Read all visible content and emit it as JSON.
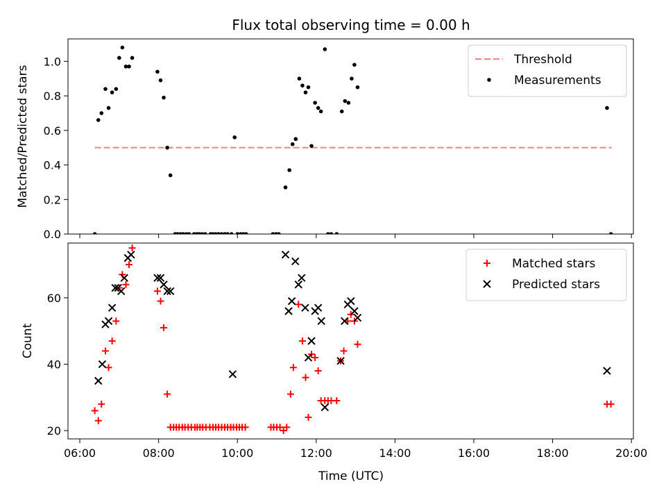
{
  "figure": {
    "title": "Flux total observing time = 0.00 h",
    "xlabel": "Time (UTC)",
    "x_ticks": [
      "06:00",
      "08:00",
      "10:00",
      "12:00",
      "14:00",
      "16:00",
      "18:00",
      "20:00"
    ]
  },
  "chart_data": [
    {
      "type": "scatter",
      "ylabel": "Matched/Predicted stars",
      "xlim": [
        5.7,
        20.05
      ],
      "ylim": [
        0.0,
        1.13
      ],
      "y_ticks": [
        "0.0",
        "0.2",
        "0.4",
        "0.6",
        "0.8",
        "1.0"
      ],
      "legend_position": "top-right",
      "threshold": {
        "name": "Threshold",
        "value": 0.5,
        "x_range": [
          6.38,
          19.5
        ],
        "color": "#ff7f7f",
        "style": "dashed"
      },
      "series": [
        {
          "name": "Measurements",
          "color": "#000000",
          "marker": "dot",
          "x": [
            6.38,
            6.47,
            6.55,
            6.65,
            6.73,
            6.82,
            6.92,
            7.0,
            7.08,
            7.17,
            7.25,
            7.33,
            7.97,
            8.05,
            8.13,
            8.22,
            8.3,
            8.42,
            8.48,
            8.55,
            8.62,
            8.7,
            8.77,
            8.9,
            8.97,
            9.03,
            9.1,
            9.18,
            9.32,
            9.38,
            9.45,
            9.52,
            9.6,
            9.68,
            9.75,
            9.85,
            9.93,
            10.0,
            10.08,
            10.15,
            10.22,
            10.9,
            10.98,
            11.05,
            11.22,
            11.32,
            11.4,
            11.48,
            11.57,
            11.65,
            11.73,
            11.8,
            11.88,
            11.97,
            12.05,
            12.12,
            12.22,
            12.3,
            12.38,
            12.52,
            12.65,
            12.73,
            12.82,
            12.9,
            12.97,
            13.05,
            19.38,
            19.48
          ],
          "y": [
            0.0,
            0.66,
            0.7,
            0.84,
            0.73,
            0.82,
            0.84,
            1.02,
            1.08,
            0.97,
            0.97,
            1.02,
            0.94,
            0.89,
            0.79,
            0.5,
            0.34,
            0.0,
            0.0,
            0.0,
            0.0,
            0.0,
            0.0,
            0.0,
            0.0,
            0.0,
            0.0,
            0.0,
            0.0,
            0.0,
            0.0,
            0.0,
            0.0,
            0.0,
            0.0,
            0.0,
            0.56,
            0.0,
            0.0,
            0.0,
            0.0,
            0.0,
            0.0,
            0.0,
            0.27,
            0.37,
            0.52,
            0.55,
            0.9,
            0.86,
            0.82,
            0.85,
            0.51,
            0.76,
            0.73,
            0.71,
            1.07,
            0.0,
            0.0,
            0.0,
            0.71,
            0.77,
            0.76,
            0.9,
            0.98,
            0.85,
            0.73,
            0.0
          ]
        }
      ]
    },
    {
      "type": "scatter",
      "ylabel": "Count",
      "xlim": [
        5.7,
        20.05
      ],
      "ylim": [
        17.5,
        76.5
      ],
      "y_ticks": [
        "20",
        "40",
        "60"
      ],
      "legend_position": "top-right",
      "series": [
        {
          "name": "Matched stars",
          "color": "#ff0000",
          "marker": "plus",
          "x": [
            6.38,
            6.47,
            6.55,
            6.65,
            6.73,
            6.82,
            6.92,
            7.0,
            7.08,
            7.17,
            7.25,
            7.33,
            7.97,
            8.05,
            8.13,
            8.22,
            8.3,
            8.38,
            8.45,
            8.52,
            8.6,
            8.67,
            8.75,
            8.83,
            8.92,
            8.98,
            9.05,
            9.12,
            9.2,
            9.3,
            9.38,
            9.45,
            9.52,
            9.6,
            9.68,
            9.75,
            9.83,
            9.9,
            9.98,
            10.05,
            10.12,
            10.2,
            10.85,
            10.92,
            11.0,
            11.08,
            11.17,
            11.25,
            11.35,
            11.42,
            11.55,
            11.65,
            11.73,
            11.8,
            11.88,
            11.97,
            12.05,
            12.12,
            12.22,
            12.3,
            12.38,
            12.52,
            12.62,
            12.7,
            12.8,
            12.88,
            12.97,
            13.05,
            19.38,
            19.48
          ],
          "y": [
            26,
            23,
            28,
            44,
            39,
            47,
            53,
            63,
            67,
            64,
            70,
            75,
            62,
            59,
            51,
            31,
            21,
            21,
            21,
            21,
            21,
            21,
            21,
            21,
            21,
            21,
            21,
            21,
            21,
            21,
            21,
            21,
            21,
            21,
            21,
            21,
            21,
            21,
            21,
            21,
            21,
            21,
            21,
            21,
            21,
            21,
            20,
            21,
            31,
            39,
            58,
            47,
            36,
            24,
            43,
            42,
            38,
            29,
            29,
            29,
            29,
            29,
            41,
            44,
            53,
            55,
            53,
            46,
            28,
            28
          ]
        },
        {
          "name": "Predicted stars",
          "color": "#000000",
          "marker": "x",
          "x": [
            6.47,
            6.57,
            6.65,
            6.73,
            6.82,
            6.9,
            6.97,
            7.05,
            7.13,
            7.22,
            7.3,
            7.97,
            8.05,
            8.13,
            8.22,
            8.3,
            9.88,
            11.22,
            11.3,
            11.38,
            11.47,
            11.55,
            11.63,
            11.72,
            11.8,
            11.88,
            11.97,
            12.05,
            12.13,
            12.22,
            12.62,
            12.72,
            12.8,
            12.88,
            12.97,
            13.05,
            19.38
          ],
          "y": [
            35,
            40,
            52,
            53,
            57,
            63,
            63,
            62,
            66,
            72,
            73,
            66,
            66,
            64,
            62,
            62,
            37,
            73,
            56,
            59,
            71,
            64,
            66,
            57,
            42,
            47,
            56,
            57,
            53,
            27,
            41,
            53,
            58,
            59,
            56,
            54,
            38
          ]
        }
      ]
    }
  ]
}
